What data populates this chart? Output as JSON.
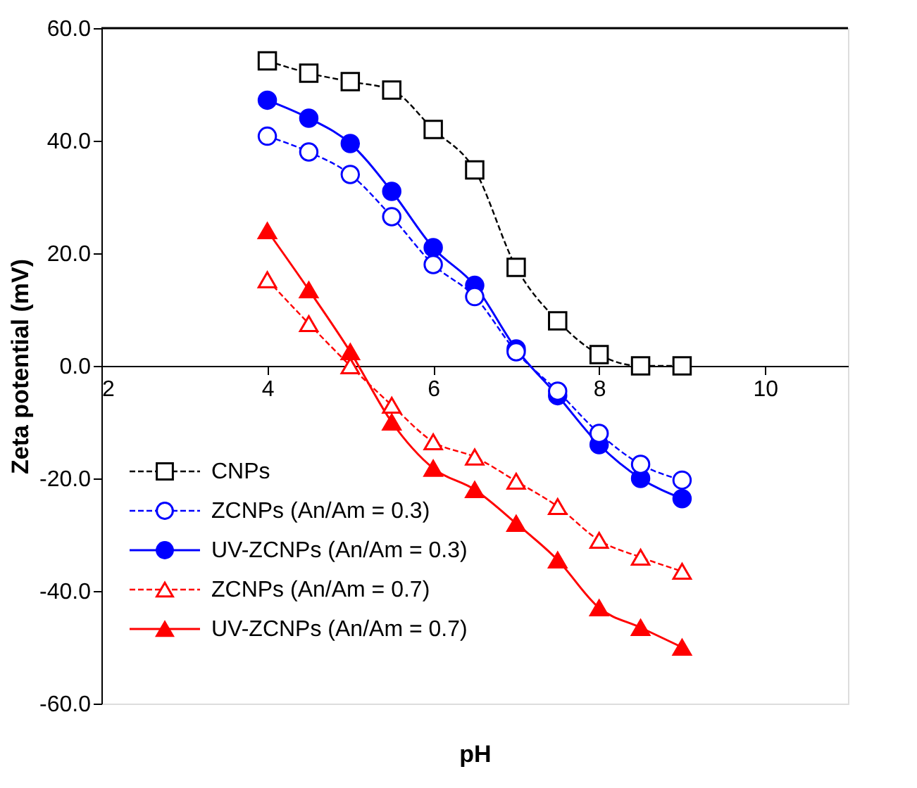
{
  "chart_data": {
    "type": "line",
    "xlabel": "pH",
    "ylabel": "Zeta potential (mV)",
    "x": [
      4,
      4.5,
      5,
      5.5,
      6,
      6.5,
      7,
      7.5,
      8,
      8.5,
      9
    ],
    "xlim": [
      2,
      11
    ],
    "xticks": [
      2,
      4,
      6,
      8,
      10
    ],
    "ylim": [
      -60,
      60
    ],
    "yticks": [
      {
        "value": -60,
        "label": "-60.0"
      },
      {
        "value": -40,
        "label": "-40.0"
      },
      {
        "value": -20,
        "label": "-20.0"
      },
      {
        "value": 0,
        "label": "0.0"
      },
      {
        "value": 20,
        "label": "20.0"
      },
      {
        "value": 40,
        "label": "40.0"
      },
      {
        "value": 60,
        "label": "60.0"
      }
    ],
    "legend": "bottom left",
    "grid": false,
    "series": [
      {
        "name": "CNPs",
        "color": "#000000",
        "marker": "square",
        "line_style": "dashed",
        "values": [
          54.2,
          52,
          50.5,
          49,
          42,
          34.8,
          17.5,
          8,
          2,
          0,
          0
        ]
      },
      {
        "name": "ZCNPs (An/Am = 0.3)",
        "color": "#0000ff",
        "marker": "circle",
        "line_style": "dashed",
        "values": [
          40.8,
          38,
          34,
          26.5,
          18,
          12.3,
          2.5,
          -4.5,
          -12,
          -17.5,
          -20.3
        ]
      },
      {
        "name": "UV-ZCNPs (An/Am = 0.3)",
        "color": "#0000ff",
        "marker": "circle",
        "line_style": "solid",
        "values": [
          47.2,
          44,
          39.5,
          31,
          21,
          14.3,
          3,
          -5.3,
          -14,
          -20,
          -23.6
        ]
      },
      {
        "name": "ZCNPs (An/Am = 0.7)",
        "color": "#ff0000",
        "marker": "triangle",
        "line_style": "dashed",
        "values": [
          15.3,
          7.5,
          0,
          -7,
          -13.5,
          -16.2,
          -20.5,
          -25,
          -31,
          -34,
          -36.5
        ]
      },
      {
        "name": "UV-ZCNPs (An/Am = 0.7)",
        "color": "#ff0000",
        "marker": "triangle",
        "line_style": "solid",
        "values": [
          24,
          13.5,
          2.5,
          -10,
          -18.2,
          -22,
          -28,
          -34.5,
          -43,
          -46.5,
          -50
        ]
      }
    ]
  }
}
